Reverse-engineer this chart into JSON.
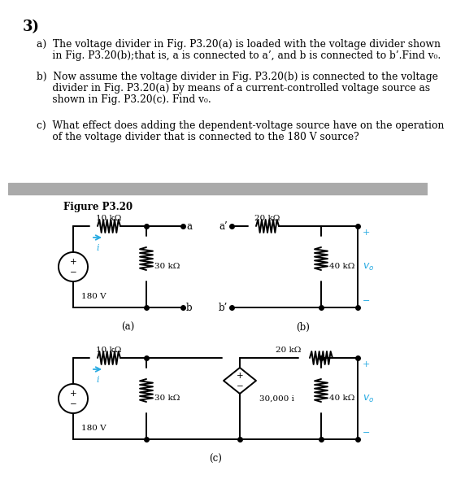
{
  "title": "3)",
  "line_a1": "a)  The voltage divider in Fig. P3.20(a) is loaded with the voltage divider shown",
  "line_a2": "     in Fig. P3.20(b);that is, a is connected to a’, and b is connected to b’.Find v₀.",
  "line_b1": "b)  Now assume the voltage divider in Fig. P3.20(b) is connected to the voltage",
  "line_b2": "     divider in Fig. P3.20(a) by means of a current-controlled voltage source as",
  "line_b3": "     shown in Fig. P3.20(c). Find v₀.",
  "line_c1": "c)  What effect does adding the dependent-voltage source have on the operation",
  "line_c2": "     of the voltage divider that is connected to the 180 V source?",
  "figure_label": "Figure P3.20",
  "bg_color": "#ffffff",
  "sep_color": "#aaaaaa",
  "cc": "#000000",
  "bc": "#29abe2",
  "text_fs": 8.8,
  "title_fs": 13
}
